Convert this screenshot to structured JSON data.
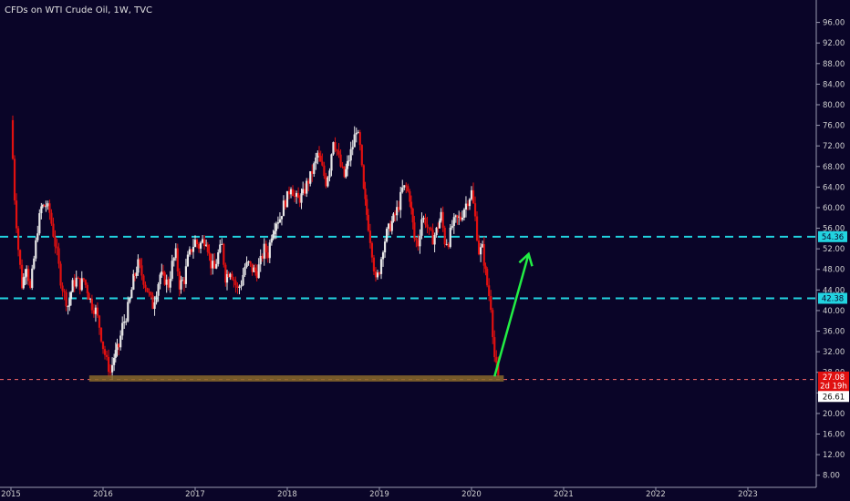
{
  "header": {
    "title": "CFDs on WTI Crude Oil, 1W, TVC"
  },
  "colors": {
    "background": "#0a0528",
    "up_candle": "#e6e6e6",
    "down_candle": "#e01010",
    "support_lines": "#22d3e0",
    "current_price_line": "#ff6b6b",
    "zone": "#8a6a2a",
    "arrow": "#22ee44"
  },
  "chart_data": {
    "type": "candlestick",
    "symbol": "CFDs on WTI Crude Oil",
    "interval": "1W",
    "source": "TVC",
    "ylim": [
      6,
      100
    ],
    "xlim": [
      2015.0,
      2023.75
    ],
    "y_ticks": [
      "96.00",
      "92.00",
      "88.00",
      "84.00",
      "80.00",
      "76.00",
      "72.00",
      "68.00",
      "64.00",
      "60.00",
      "56.00",
      "52.00",
      "48.00",
      "44.00",
      "40.00",
      "36.00",
      "32.00",
      "28.00",
      "24.00",
      "20.00",
      "16.00",
      "12.00",
      "8.00"
    ],
    "x_ticks": [
      {
        "label": "2015",
        "x": 2015.0
      },
      {
        "label": "2016",
        "x": 2016.0
      },
      {
        "label": "2017",
        "x": 2017.0
      },
      {
        "label": "2018",
        "x": 2018.0
      },
      {
        "label": "2019",
        "x": 2019.0
      },
      {
        "label": "2020",
        "x": 2020.0
      },
      {
        "label": "2021",
        "x": 2021.0
      },
      {
        "label": "2022",
        "x": 2022.0
      },
      {
        "label": "2023",
        "x": 2023.0
      }
    ],
    "price_path": [
      [
        2015.0,
        77.0
      ],
      [
        2015.04,
        62.0
      ],
      [
        2015.08,
        52.0
      ],
      [
        2015.12,
        45.0
      ],
      [
        2015.17,
        49.0
      ],
      [
        2015.21,
        44.0
      ],
      [
        2015.25,
        50.0
      ],
      [
        2015.29,
        56.0
      ],
      [
        2015.33,
        60.0
      ],
      [
        2015.38,
        60.5
      ],
      [
        2015.42,
        59.0
      ],
      [
        2015.46,
        55.0
      ],
      [
        2015.5,
        51.0
      ],
      [
        2015.54,
        46.0
      ],
      [
        2015.58,
        43.0
      ],
      [
        2015.62,
        41.0
      ],
      [
        2015.67,
        45.0
      ],
      [
        2015.71,
        46.0
      ],
      [
        2015.75,
        45.0
      ],
      [
        2015.79,
        46.0
      ],
      [
        2015.83,
        44.0
      ],
      [
        2015.88,
        41.0
      ],
      [
        2015.92,
        40.0
      ],
      [
        2015.96,
        37.0
      ],
      [
        2016.0,
        33.0
      ],
      [
        2016.04,
        30.0
      ],
      [
        2016.08,
        28.0
      ],
      [
        2016.12,
        31.0
      ],
      [
        2016.17,
        33.0
      ],
      [
        2016.21,
        37.0
      ],
      [
        2016.25,
        39.0
      ],
      [
        2016.29,
        42.0
      ],
      [
        2016.33,
        46.0
      ],
      [
        2016.38,
        49.0
      ],
      [
        2016.42,
        47.0
      ],
      [
        2016.46,
        45.0
      ],
      [
        2016.5,
        43.0
      ],
      [
        2016.54,
        41.0
      ],
      [
        2016.58,
        44.0
      ],
      [
        2016.62,
        47.0
      ],
      [
        2016.67,
        46.0
      ],
      [
        2016.71,
        45.0
      ],
      [
        2016.75,
        49.0
      ],
      [
        2016.79,
        51.0
      ],
      [
        2016.83,
        45.0
      ],
      [
        2016.88,
        46.0
      ],
      [
        2016.92,
        50.0
      ],
      [
        2016.96,
        52.0
      ],
      [
        2017.0,
        53.5
      ],
      [
        2017.04,
        52.5
      ],
      [
        2017.08,
        53.5
      ],
      [
        2017.12,
        54.0
      ],
      [
        2017.17,
        49.0
      ],
      [
        2017.21,
        48.0
      ],
      [
        2017.25,
        51.0
      ],
      [
        2017.29,
        52.5
      ],
      [
        2017.33,
        46.5
      ],
      [
        2017.38,
        48.0
      ],
      [
        2017.42,
        46.0
      ],
      [
        2017.46,
        44.0
      ],
      [
        2017.5,
        45.5
      ],
      [
        2017.54,
        48.5
      ],
      [
        2017.58,
        49.0
      ],
      [
        2017.62,
        48.0
      ],
      [
        2017.67,
        47.5
      ],
      [
        2017.71,
        49.5
      ],
      [
        2017.75,
        52.0
      ],
      [
        2017.79,
        51.0
      ],
      [
        2017.83,
        55.0
      ],
      [
        2017.88,
        57.5
      ],
      [
        2017.92,
        58.0
      ],
      [
        2017.96,
        60.5
      ],
      [
        2018.0,
        62.0
      ],
      [
        2018.04,
        64.5
      ],
      [
        2018.08,
        62.0
      ],
      [
        2018.12,
        61.5
      ],
      [
        2018.17,
        62.5
      ],
      [
        2018.21,
        64.5
      ],
      [
        2018.25,
        66.0
      ],
      [
        2018.29,
        68.0
      ],
      [
        2018.33,
        70.5
      ],
      [
        2018.38,
        67.5
      ],
      [
        2018.42,
        65.0
      ],
      [
        2018.46,
        68.0
      ],
      [
        2018.5,
        73.5
      ],
      [
        2018.54,
        71.0
      ],
      [
        2018.58,
        68.0
      ],
      [
        2018.62,
        66.0
      ],
      [
        2018.67,
        69.5
      ],
      [
        2018.71,
        72.0
      ],
      [
        2018.75,
        75.5
      ],
      [
        2018.79,
        71.5
      ],
      [
        2018.83,
        63.0
      ],
      [
        2018.88,
        56.5
      ],
      [
        2018.92,
        51.5
      ],
      [
        2018.96,
        45.5
      ],
      [
        2019.0,
        48.0
      ],
      [
        2019.04,
        52.5
      ],
      [
        2019.08,
        55.0
      ],
      [
        2019.12,
        56.5
      ],
      [
        2019.17,
        58.5
      ],
      [
        2019.21,
        60.5
      ],
      [
        2019.25,
        63.5
      ],
      [
        2019.29,
        64.0
      ],
      [
        2019.33,
        62.0
      ],
      [
        2019.38,
        54.0
      ],
      [
        2019.42,
        53.0
      ],
      [
        2019.46,
        58.0
      ],
      [
        2019.5,
        57.5
      ],
      [
        2019.54,
        55.0
      ],
      [
        2019.58,
        54.0
      ],
      [
        2019.62,
        55.5
      ],
      [
        2019.67,
        58.5
      ],
      [
        2019.71,
        53.5
      ],
      [
        2019.75,
        53.5
      ],
      [
        2019.79,
        56.5
      ],
      [
        2019.83,
        57.5
      ],
      [
        2019.88,
        58.0
      ],
      [
        2019.92,
        60.0
      ],
      [
        2019.96,
        61.5
      ],
      [
        2020.0,
        63.0
      ],
      [
        2020.04,
        58.0
      ],
      [
        2020.08,
        51.5
      ],
      [
        2020.12,
        52.0
      ],
      [
        2020.17,
        45.0
      ],
      [
        2020.21,
        41.0
      ],
      [
        2020.25,
        31.0
      ],
      [
        2020.29,
        26.61
      ]
    ],
    "horizontal_levels": [
      {
        "price": 54.36,
        "label": "54.36",
        "style": "dashed",
        "color": "#22d3e0"
      },
      {
        "price": 42.38,
        "label": "42.38",
        "style": "dashed",
        "color": "#22d3e0"
      }
    ],
    "support_zone": {
      "x_start": 2015.85,
      "x_end": 2020.35,
      "price_low": 26.2,
      "price_high": 27.4
    },
    "arrow": {
      "from": [
        2020.25,
        27.2
      ],
      "to": [
        2020.62,
        51.0
      ]
    },
    "price_tags": [
      {
        "price": 27.08,
        "text": "27.08",
        "bg": "#e01010",
        "fg": "#ffffff"
      },
      {
        "price": 25.35,
        "text": "2d 19h",
        "bg": "#e01010",
        "fg": "#ffffff"
      },
      {
        "price": 23.3,
        "text": "26.61",
        "bg": "#ffffff",
        "fg": "#111111"
      }
    ],
    "current_price": 26.61
  }
}
